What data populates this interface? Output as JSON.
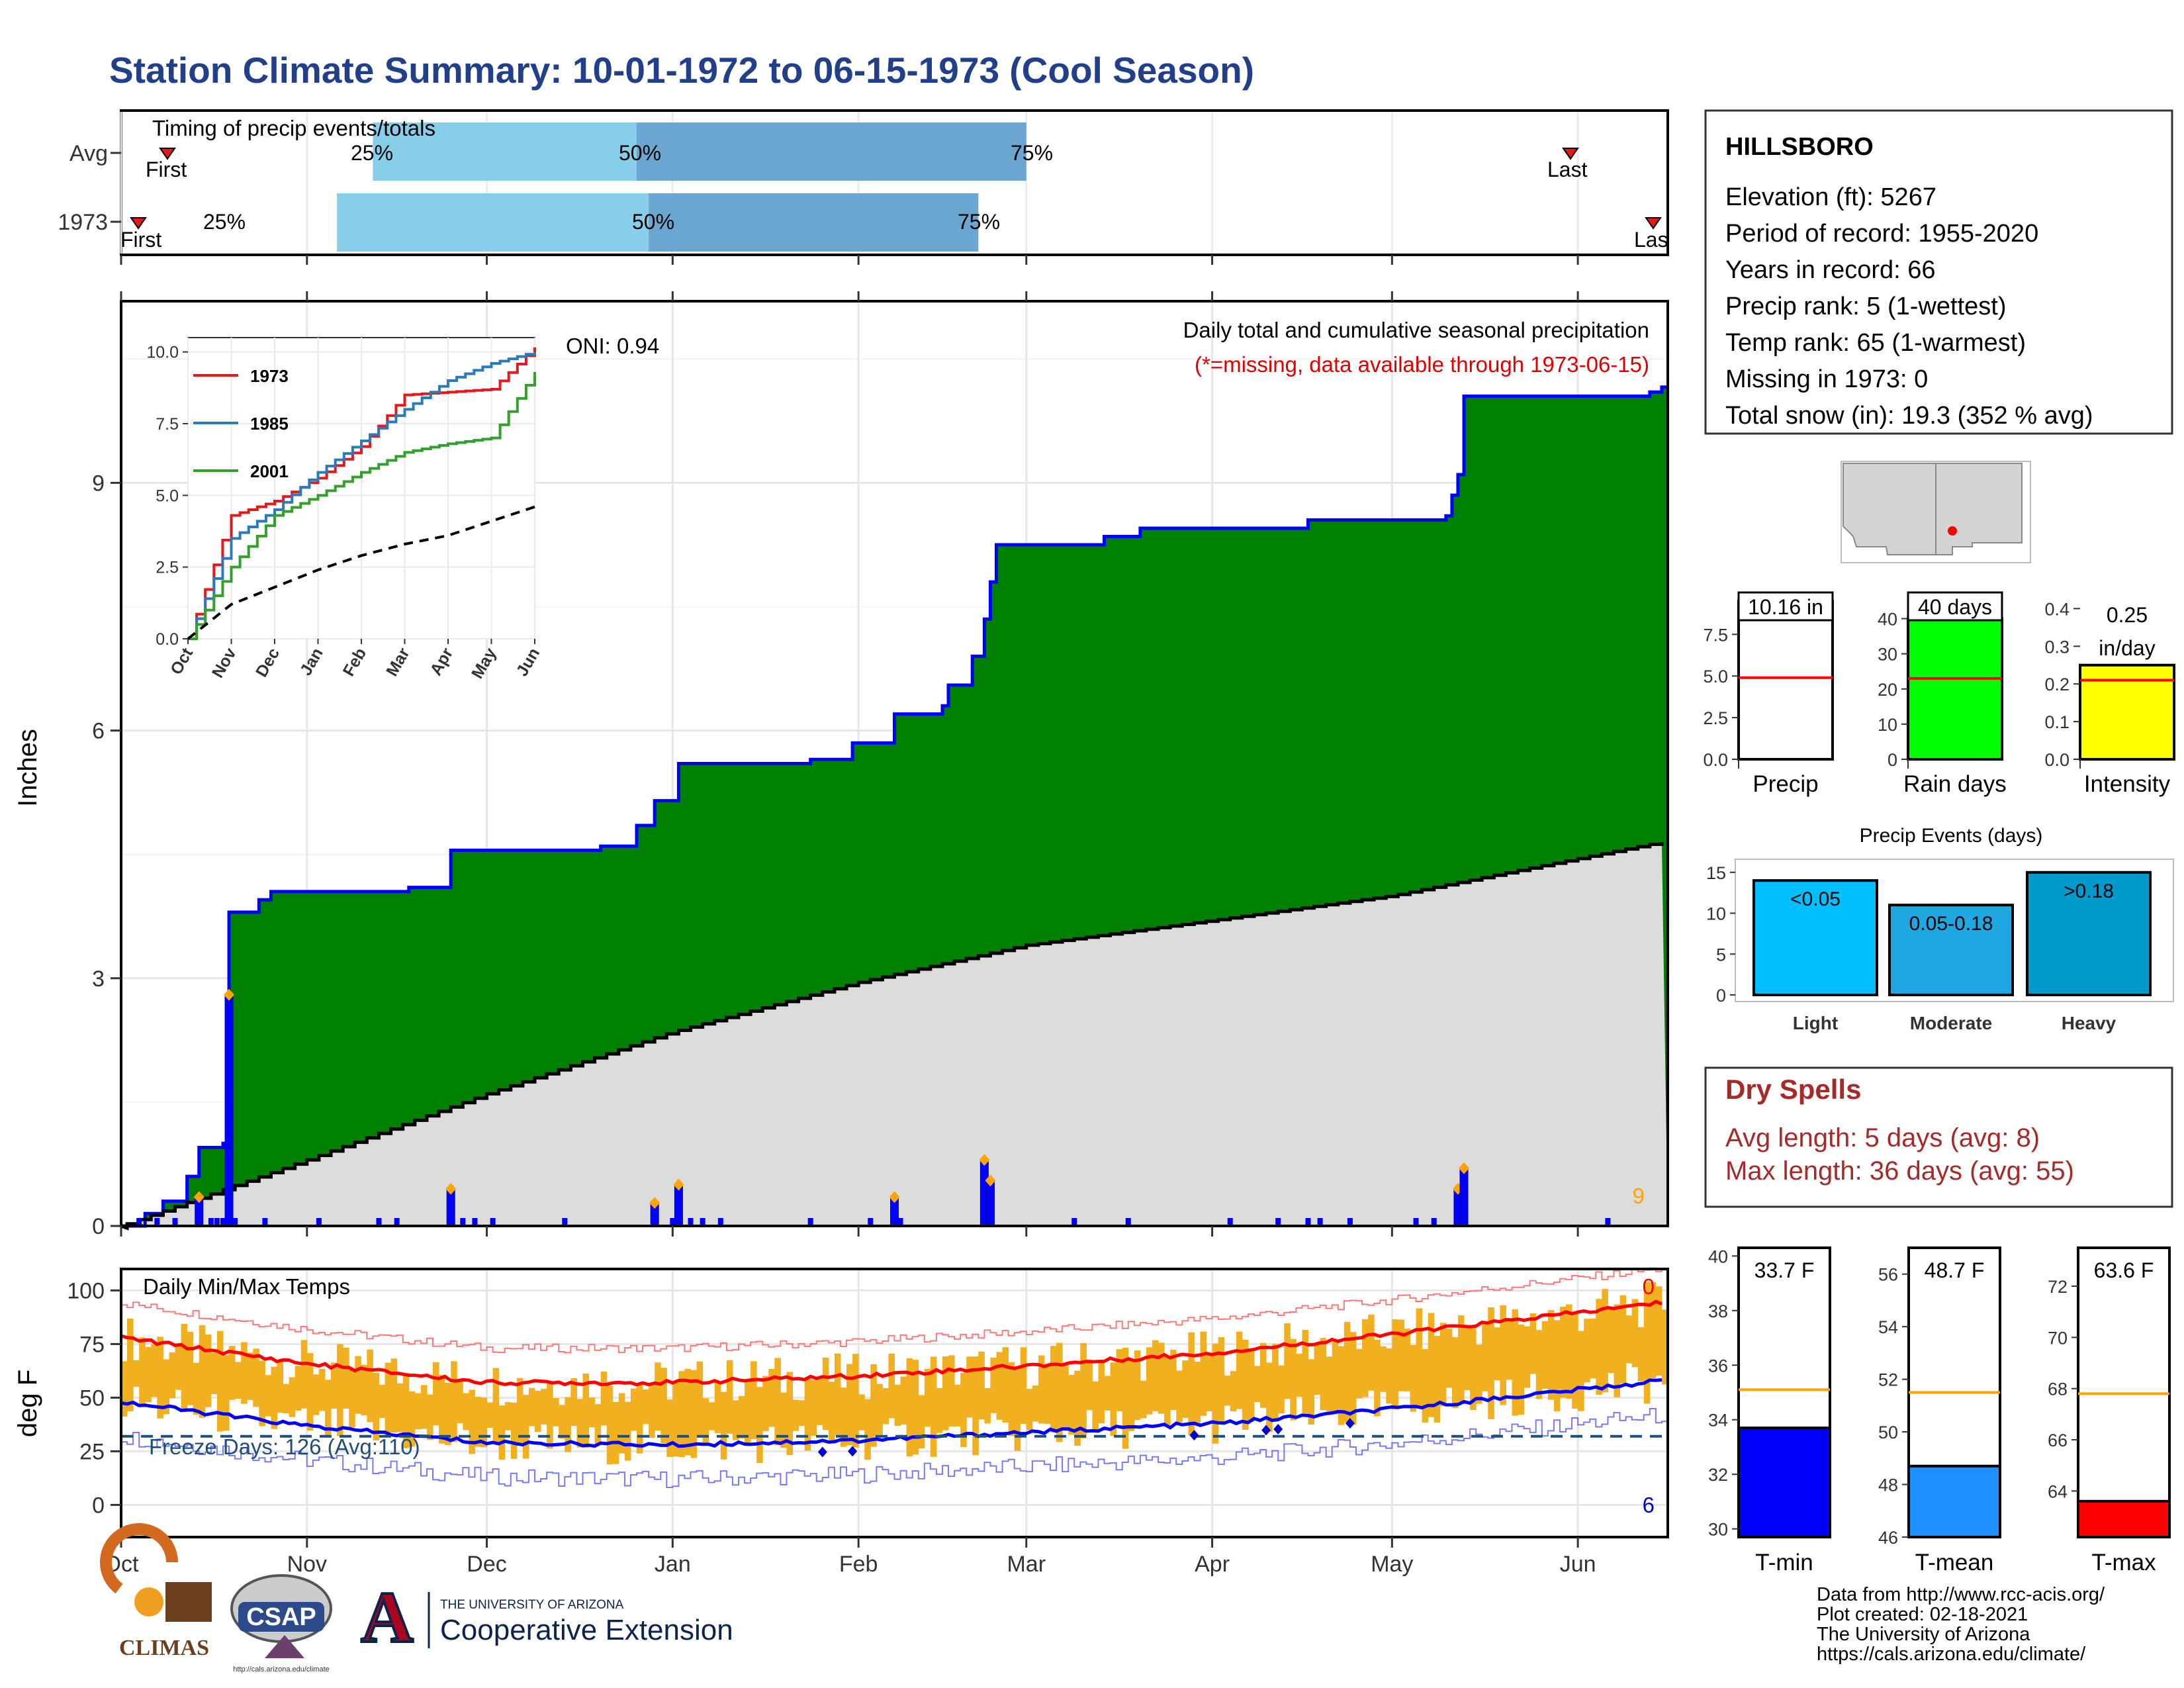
{
  "title": "Station Climate Summary: 10-01-1972 to 06-15-1973 (Cool Season)",
  "timing": {
    "label": "Timing of precip events/totals",
    "rows": [
      {
        "name": "Avg",
        "first_label": "First",
        "last_label": "Last",
        "p25": "25%",
        "p50": "50%",
        "p75": "75%"
      },
      {
        "name": "1973",
        "first_label": "First",
        "last_label": "Last",
        "p25": "25%",
        "p50": "50%",
        "p75": "75%"
      }
    ]
  },
  "main": {
    "ylabel": "Inches",
    "oni": "ONI: 0.94",
    "subtitle": "Daily total and cumulative seasonal precipitation",
    "missing_note": "(*=missing, data available through 1973-06-15)",
    "count_label": "9",
    "yticks": [
      "0",
      "3",
      "6",
      "9"
    ],
    "months": [
      "Oct",
      "Nov",
      "Dec",
      "Jan",
      "Feb",
      "Mar",
      "Apr",
      "May",
      "Jun"
    ]
  },
  "inset": {
    "yticks": [
      "0.0",
      "2.5",
      "5.0",
      "7.5",
      "10.0"
    ],
    "months": [
      "Oct",
      "Nov",
      "Dec",
      "Jan",
      "Feb",
      "Mar",
      "Apr",
      "May",
      "Jun"
    ],
    "legend": [
      {
        "name": "1973",
        "color": "#e31a1c"
      },
      {
        "name": "1985",
        "color": "#2b7bba"
      },
      {
        "name": "2001",
        "color": "#33a02c"
      }
    ]
  },
  "temps": {
    "ylabel": "deg F",
    "label": "Daily Min/Max Temps",
    "freeze": "Freeze Days: 126 (Avg:110)",
    "count_top": "0",
    "count_bottom": "6",
    "yticks": [
      "0",
      "25",
      "50",
      "75",
      "100"
    ]
  },
  "station": {
    "name": "HILLSBORO",
    "lines": [
      "Elevation (ft): 5267",
      "Period of record: 1955-2020",
      "Years in record: 66",
      "Precip rank: 5 (1-wettest)",
      "Temp rank: 65 (1-warmest)",
      "Missing in 1973: 0",
      "Total snow (in): 19.3 (352 % avg)"
    ]
  },
  "mini_bars": [
    {
      "label": "Precip",
      "value_text": "10.16 in",
      "value": 10.16,
      "avg": 4.9,
      "ymax": 9.5,
      "yticks": [
        "0.0",
        "2.5",
        "5.0",
        "7.5"
      ],
      "color": "#ffffff"
    },
    {
      "label": "Rain days",
      "value_text": "40 days",
      "value": 40,
      "avg": 23,
      "ymax": 45,
      "yticks": [
        "0",
        "10",
        "20",
        "30",
        "40"
      ],
      "color": "#00ff00"
    },
    {
      "label": "Intensity",
      "value_text": "0.25 in/day",
      "value": 0.25,
      "avg": 0.21,
      "ymax": 0.42,
      "yticks": [
        "0.0",
        "0.1",
        "0.2",
        "0.3",
        "0.4"
      ],
      "color": "#ffff00"
    }
  ],
  "precip_events": {
    "title": "Precip Events (days)",
    "yticks": [
      "0",
      "5",
      "10",
      "15"
    ],
    "bars": [
      {
        "category": "Light",
        "label": "<0.05",
        "value": 14,
        "color": "#00bfff"
      },
      {
        "category": "Moderate",
        "label": "0.05-0.18",
        "value": 11,
        "color": "#1ea7e0"
      },
      {
        "category": "Heavy",
        "label": ">0.18",
        "value": 15,
        "color": "#0099cc"
      }
    ]
  },
  "dry_spells": {
    "title": "Dry Spells",
    "avg": "Avg length: 5 days (avg: 8)",
    "max": "Max length: 36 days (avg: 55)"
  },
  "temp_bars": [
    {
      "label": "T-min",
      "value_text": "33.7 F",
      "value": 33.7,
      "avg": 35.1,
      "ymin": 29.7,
      "ymax": 40.3,
      "yticks": [
        "30",
        "32",
        "34",
        "36",
        "38",
        "40"
      ],
      "color": "#0000ff"
    },
    {
      "label": "T-mean",
      "value_text": "48.7 F",
      "value": 48.7,
      "avg": 51.5,
      "ymin": 46,
      "ymax": 57,
      "yticks": [
        "46",
        "48",
        "50",
        "52",
        "54",
        "56"
      ],
      "color": "#1e90ff"
    },
    {
      "label": "T-max",
      "value_text": "63.6 F",
      "value": 63.6,
      "avg": 67.8,
      "ymin": 62.2,
      "ymax": 73.5,
      "yticks": [
        "64",
        "66",
        "68",
        "70",
        "72"
      ],
      "color": "#ff0000"
    }
  ],
  "footer": {
    "lines": [
      "Data from http://www.rcc-acis.org/",
      "Plot created: 02-18-2021",
      "The University of Arizona",
      "https://cals.arizona.edu/climate/"
    ],
    "climas": "CLIMAS",
    "csap": "CSAP",
    "csap_url": "http://cals.arizona.edu/climate",
    "ua_small": "THE UNIVERSITY OF ARIZONA",
    "ua_big": "Cooperative Extension",
    "ua_letter": "A"
  },
  "chart_data": [
    {
      "type": "bar",
      "title": "Timing of precip events/totals",
      "categories": [
        "Avg",
        "1973"
      ],
      "series": [
        {
          "name": "First",
          "values": [
            "10-10",
            "10-04"
          ]
        },
        {
          "name": "25%",
          "values": [
            "11-12",
            "11-06"
          ]
        },
        {
          "name": "50%",
          "values": [
            "12-26",
            "12-28"
          ]
        },
        {
          "name": "75%",
          "values": [
            "03-01",
            "02-21"
          ]
        },
        {
          "name": "Last",
          "values": [
            "06-01",
            "06-13"
          ]
        }
      ]
    },
    {
      "type": "area",
      "title": "Daily total and cumulative seasonal precipitation",
      "ylabel": "Inches",
      "ylim": [
        0,
        11.2
      ],
      "xlim": [
        "1972-10-01",
        "1973-06-15"
      ],
      "series": [
        {
          "name": "1973 cumulative",
          "x": [
            "1972-10-01",
            "1972-10-05",
            "1972-10-08",
            "1972-10-12",
            "1972-10-14",
            "1972-10-18",
            "1972-10-19",
            "1972-10-24",
            "1972-10-26",
            "1972-11-18",
            "1972-11-25",
            "1972-12-20",
            "1972-12-26",
            "1972-12-29",
            "1973-01-02",
            "1973-01-24",
            "1973-01-31",
            "1973-02-07",
            "1973-02-15",
            "1973-02-16",
            "1973-02-20",
            "1973-02-22",
            "1973-02-23",
            "1973-02-24",
            "1973-03-14",
            "1973-03-20",
            "1973-04-17",
            "1973-05-10",
            "1973-05-11",
            "1973-05-12",
            "1973-05-13",
            "1973-06-13",
            "1973-06-15"
          ],
          "y": [
            0,
            0.15,
            0.3,
            0.6,
            0.95,
            1.0,
            3.8,
            3.95,
            4.05,
            4.1,
            4.55,
            4.6,
            4.85,
            5.15,
            5.6,
            5.65,
            5.85,
            6.2,
            6.3,
            6.55,
            6.9,
            7.35,
            7.8,
            8.25,
            8.35,
            8.45,
            8.55,
            8.6,
            8.85,
            9.1,
            10.05,
            10.1,
            10.16
          ]
        },
        {
          "name": "Average cumulative",
          "x": [
            "1972-10-01",
            "1972-11-01",
            "1972-12-01",
            "1973-01-01",
            "1973-02-01",
            "1973-03-01",
            "1973-04-01",
            "1973-05-01",
            "1973-06-01",
            "1973-06-15"
          ],
          "y": [
            0,
            0.8,
            1.6,
            2.35,
            2.95,
            3.4,
            3.7,
            4.0,
            4.45,
            4.65
          ]
        },
        {
          "name": "Daily precip",
          "x": [
            "1972-10-14",
            "1972-10-19",
            "1972-11-25",
            "1972-12-29",
            "1973-01-02",
            "1973-02-07",
            "1973-02-22",
            "1973-02-23",
            "1973-05-12",
            "1973-05-13"
          ],
          "y": [
            0.35,
            2.8,
            0.45,
            0.28,
            0.5,
            0.35,
            0.8,
            0.55,
            0.45,
            0.7
          ]
        }
      ]
    },
    {
      "type": "line",
      "title": "Cumulative precipitation comparison",
      "ylim": [
        0,
        10
      ],
      "series": [
        {
          "name": "1973",
          "y": [
            0,
            4.3,
            4.8,
            5.6,
            6.7,
            8.5,
            8.6,
            8.7,
            10.16
          ]
        },
        {
          "name": "1985",
          "y": [
            0,
            3.5,
            4.5,
            5.8,
            6.9,
            8.0,
            9.0,
            9.6,
            10.0
          ]
        },
        {
          "name": "2001",
          "y": [
            0,
            2.5,
            4.3,
            5.0,
            5.8,
            6.5,
            6.8,
            7.0,
            9.3
          ]
        },
        {
          "name": "Average",
          "y": [
            0,
            1.2,
            1.8,
            2.4,
            2.9,
            3.3,
            3.6,
            4.1,
            4.6
          ]
        }
      ]
    },
    {
      "type": "bar",
      "title": "Daily Min/Max Temps",
      "ylabel": "deg F",
      "ylim": [
        -15,
        110
      ],
      "series": [
        {
          "name": "Avg max",
          "x": [
            "Oct",
            "Nov",
            "Dec",
            "Jan",
            "Feb",
            "Mar",
            "Apr",
            "May",
            "Jun"
          ],
          "y": [
            78,
            66,
            57,
            57,
            60,
            65,
            71,
            80,
            90
          ]
        },
        {
          "name": "Avg min",
          "x": [
            "Oct",
            "Nov",
            "Dec",
            "Jan",
            "Feb",
            "Mar",
            "Apr",
            "May",
            "Jun"
          ],
          "y": [
            48,
            37,
            29,
            28,
            30,
            34,
            38,
            45,
            54
          ]
        },
        {
          "name": "Freeze threshold",
          "y": [
            32
          ]
        }
      ]
    },
    {
      "type": "bar",
      "title": "Precip Events (days)",
      "categories": [
        "Light",
        "Moderate",
        "Heavy"
      ],
      "values": [
        14,
        11,
        15
      ]
    }
  ]
}
